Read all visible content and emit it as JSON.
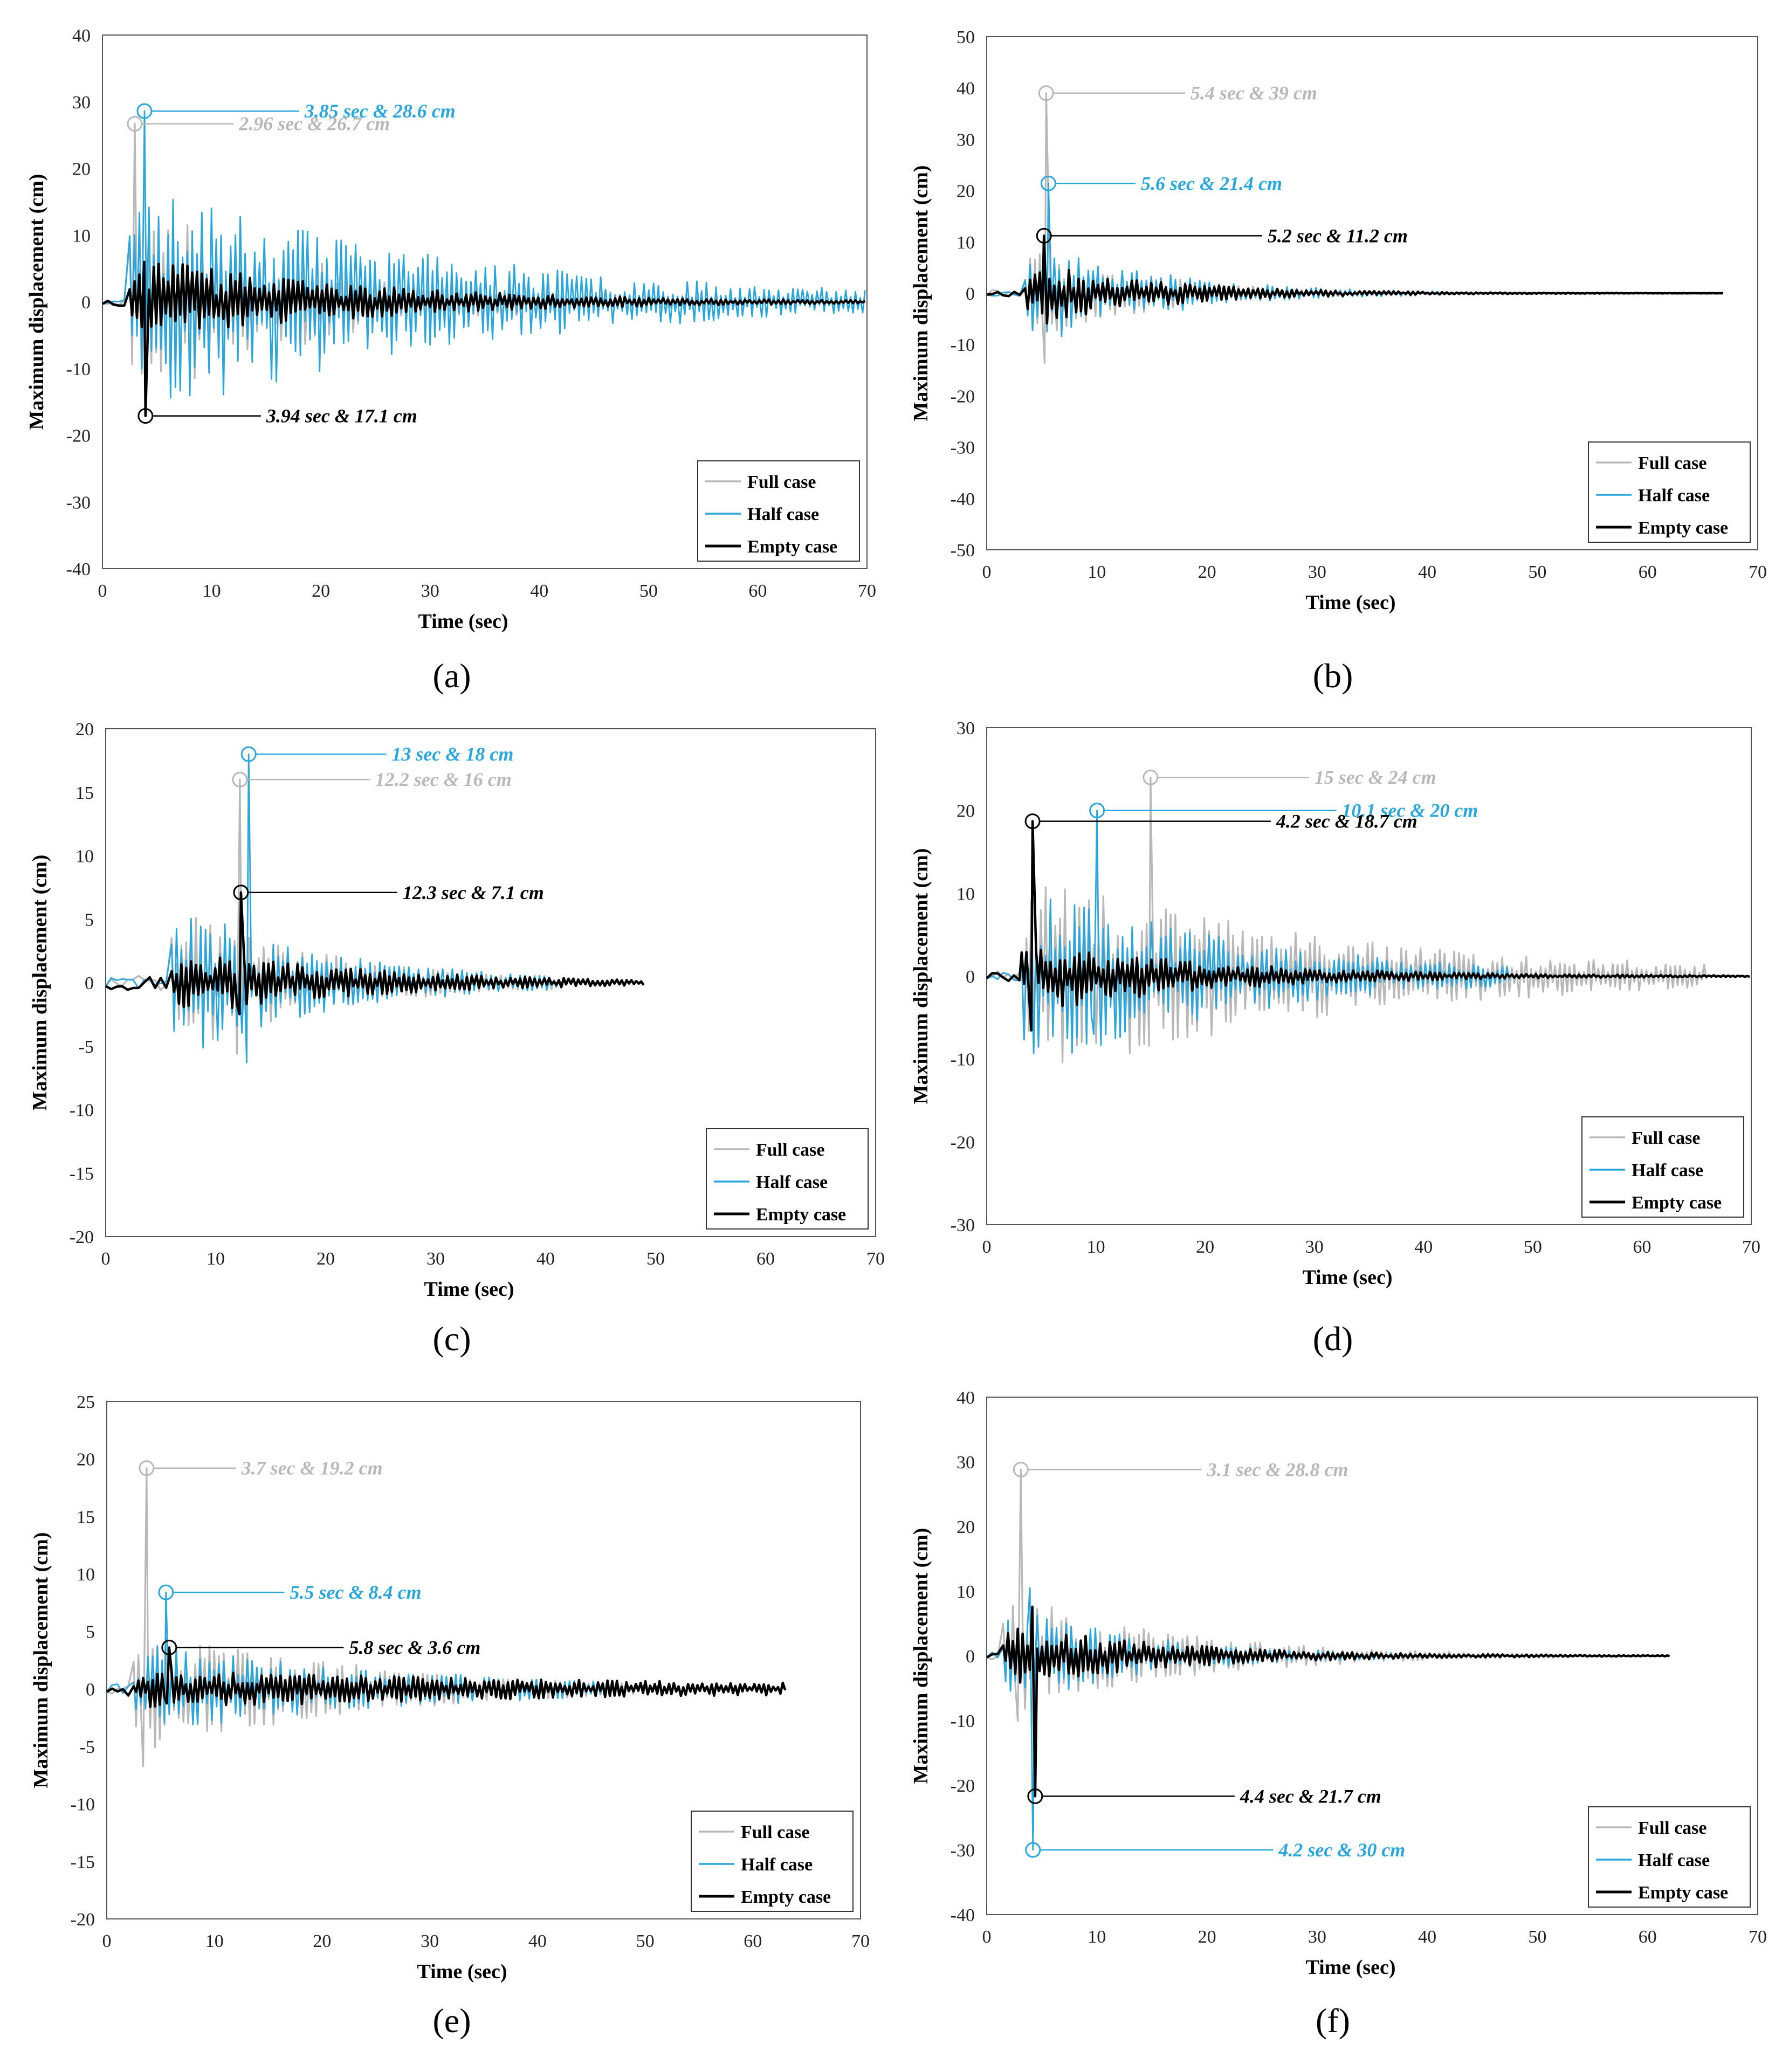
{
  "colors": {
    "full": "#b8b8b8",
    "half": "#2aa6dc",
    "empty": "#000000"
  },
  "chart_data": [
    {
      "panel": "(a)",
      "type": "line",
      "xlabel": "Time (sec)",
      "ylabel": "Maximum displacement (cm)",
      "xlim": [
        0,
        70
      ],
      "ylim": [
        -40,
        40
      ],
      "xticks": [
        0,
        10,
        20,
        30,
        40,
        50,
        60,
        70
      ],
      "yticks": [
        -40,
        -30,
        -20,
        -10,
        0,
        10,
        20,
        30,
        40
      ],
      "legend": [
        "Full case",
        "Half case",
        "Empty case"
      ],
      "legend_loc": "bottom-right",
      "series": [
        {
          "name": "Full case",
          "key": "full",
          "end": 60,
          "amp": 14,
          "decay": 0.06,
          "seed": 11
        },
        {
          "name": "Half case",
          "key": "half",
          "end": 70,
          "amp": 16,
          "decay": 0.035,
          "seed": 23
        },
        {
          "name": "Empty case",
          "key": "empty",
          "end": 70,
          "amp": 6,
          "decay": 0.05,
          "seed": 37
        }
      ],
      "annotations": [
        {
          "series": "half",
          "t": 3.85,
          "v": 28.6,
          "text": "3.85 sec & 28.6 cm",
          "tx": 18.5,
          "ty": 29.8
        },
        {
          "series": "full",
          "t": 2.96,
          "v": 26.7,
          "text": "2.96 sec & 26.7 cm",
          "tx": 12.5,
          "ty": 25.7
        },
        {
          "series": "empty",
          "t": 3.94,
          "v": -17.1,
          "text": "3.94 sec & 17.1 cm",
          "tx": 15,
          "ty": -16.8
        }
      ]
    },
    {
      "panel": "(b)",
      "type": "line",
      "xlabel": "Time (sec)",
      "ylabel": "Maximum displacement (cm)",
      "xlim": [
        0,
        70
      ],
      "ylim": [
        -50,
        50
      ],
      "xticks": [
        0,
        10,
        20,
        30,
        40,
        50,
        60,
        70
      ],
      "yticks": [
        -50,
        -40,
        -30,
        -20,
        -10,
        0,
        10,
        20,
        30,
        40,
        50
      ],
      "legend": [
        "Full case",
        "Half case",
        "Empty case"
      ],
      "legend_loc": "bottom-right",
      "series": [
        {
          "name": "Full case",
          "key": "full",
          "end": 56,
          "amp": 9,
          "decay": 0.1,
          "seed": 41
        },
        {
          "name": "Half case",
          "key": "half",
          "end": 63,
          "amp": 10,
          "decay": 0.09,
          "seed": 53
        },
        {
          "name": "Empty case",
          "key": "empty",
          "end": 67,
          "amp": 6,
          "decay": 0.09,
          "seed": 67
        }
      ],
      "annotations": [
        {
          "series": "full",
          "t": 5.4,
          "v": 39,
          "text": "5.4 sec & 39 cm",
          "tx": 18.5,
          "ty": 39.5
        },
        {
          "series": "half",
          "t": 5.6,
          "v": 21.4,
          "text": "5.6 sec & 21.4 cm",
          "tx": 14,
          "ty": 21.5
        },
        {
          "series": "empty",
          "t": 5.2,
          "v": 11.2,
          "text": "5.2 sec & 11.2 cm",
          "tx": 25.5,
          "ty": 11.5
        }
      ]
    },
    {
      "panel": "(c)",
      "type": "line",
      "xlabel": "Time (sec)",
      "ylabel": "Maximum displacement (cm)",
      "xlim": [
        0,
        70
      ],
      "ylim": [
        -20,
        20
      ],
      "xticks": [
        0,
        10,
        20,
        30,
        40,
        50,
        60,
        70
      ],
      "yticks": [
        -20,
        -15,
        -10,
        -5,
        0,
        5,
        10,
        15,
        20
      ],
      "legend": [
        "Full case",
        "Half case",
        "Empty case"
      ],
      "legend_loc": "bottom-right",
      "series": [
        {
          "name": "Full case",
          "key": "full",
          "end": 41,
          "amp": 5,
          "decay": 0.07,
          "seed": 71
        },
        {
          "name": "Half case",
          "key": "half",
          "end": 41,
          "amp": 5.5,
          "decay": 0.07,
          "seed": 83
        },
        {
          "name": "Empty case",
          "key": "empty",
          "end": 49,
          "amp": 2.5,
          "decay": 0.06,
          "seed": 97
        }
      ],
      "annotations": [
        {
          "series": "half",
          "t": 13,
          "v": 18,
          "text": "13 sec & 18 cm",
          "tx": 26,
          "ty": 18
        },
        {
          "series": "full",
          "t": 12.2,
          "v": 16,
          "text": "12.2 sec & 16 cm",
          "tx": 24.5,
          "ty": 15.5
        },
        {
          "series": "empty",
          "t": 12.3,
          "v": 7.1,
          "text": "12.3 sec & 7.1 cm",
          "tx": 27,
          "ty": 7.1
        }
      ]
    },
    {
      "panel": "(d)",
      "type": "line",
      "xlabel": "Time (sec)",
      "ylabel": "Maximum displacement (cm)",
      "xlim": [
        0,
        70
      ],
      "ylim": [
        -30,
        30
      ],
      "xticks": [
        0,
        10,
        20,
        30,
        40,
        50,
        60,
        70
      ],
      "yticks": [
        -30,
        -20,
        -10,
        0,
        10,
        20,
        30
      ],
      "legend": [
        "Full case",
        "Half case",
        "Empty case"
      ],
      "legend_loc": "bottom-right",
      "series": [
        {
          "name": "Full case",
          "key": "full",
          "end": 66,
          "amp": 11,
          "decay": 0.035,
          "seed": 101
        },
        {
          "name": "Half case",
          "key": "half",
          "end": 48,
          "amp": 10,
          "decay": 0.05,
          "seed": 113
        },
        {
          "name": "Empty case",
          "key": "empty",
          "end": 70,
          "amp": 4,
          "decay": 0.06,
          "seed": 127
        }
      ],
      "annotations": [
        {
          "series": "full",
          "t": 15,
          "v": 24,
          "text": "15 sec & 24 cm",
          "tx": 30,
          "ty": 23.5
        },
        {
          "series": "half",
          "t": 10.1,
          "v": 20,
          "text": "10.1 sec & 20 cm",
          "tx": 32.5,
          "ty": 20.5
        },
        {
          "series": "empty",
          "t": 4.2,
          "v": 18.7,
          "text": "4.2 sec & 18.7 cm",
          "tx": 26.5,
          "ty": 18.2
        }
      ]
    },
    {
      "panel": "(e)",
      "type": "line",
      "xlabel": "Time (sec)",
      "ylabel": "Maximum displacement (cm)",
      "xlim": [
        0,
        70
      ],
      "ylim": [
        -20,
        25
      ],
      "xticks": [
        0,
        10,
        20,
        30,
        40,
        50,
        60,
        70
      ],
      "yticks": [
        -20,
        -15,
        -10,
        -5,
        0,
        5,
        10,
        15,
        20,
        25
      ],
      "legend": [
        "Full case",
        "Half case",
        "Empty case"
      ],
      "legend_loc": "bottom-right",
      "series": [
        {
          "name": "Full case",
          "key": "full",
          "end": 49,
          "amp": 5,
          "decay": 0.05,
          "seed": 131
        },
        {
          "name": "Half case",
          "key": "half",
          "end": 47,
          "amp": 3.5,
          "decay": 0.04,
          "seed": 149
        },
        {
          "name": "Empty case",
          "key": "empty",
          "end": 63,
          "amp": 1.5,
          "decay": 0.02,
          "seed": 157
        }
      ],
      "annotations": [
        {
          "series": "full",
          "t": 3.7,
          "v": 19.2,
          "text": "3.7 sec & 19.2 cm",
          "tx": 12.5,
          "ty": 18.9
        },
        {
          "series": "half",
          "t": 5.5,
          "v": 8.4,
          "text": "5.5 sec & 8.4 cm",
          "tx": 17,
          "ty": 8.8
        },
        {
          "series": "empty",
          "t": 5.8,
          "v": 3.6,
          "text": "5.8 sec & 3.6 cm",
          "tx": 22.5,
          "ty": 4
        }
      ]
    },
    {
      "panel": "(f)",
      "type": "line",
      "xlabel": "Time (sec)",
      "ylabel": "Maximum displacement (cm)",
      "xlim": [
        0,
        70
      ],
      "ylim": [
        -40,
        40
      ],
      "xticks": [
        0,
        10,
        20,
        30,
        40,
        50,
        60,
        70
      ],
      "yticks": [
        -40,
        -30,
        -20,
        -10,
        0,
        10,
        20,
        30,
        40
      ],
      "legend": [
        "Full case",
        "Half case",
        "Empty case"
      ],
      "legend_loc": "bottom-right",
      "series": [
        {
          "name": "Full case",
          "key": "full",
          "end": 53,
          "amp": 9,
          "decay": 0.07,
          "seed": 163
        },
        {
          "name": "Half case",
          "key": "half",
          "end": 53,
          "amp": 7,
          "decay": 0.08,
          "seed": 173
        },
        {
          "name": "Empty case",
          "key": "empty",
          "end": 62,
          "amp": 4.5,
          "decay": 0.07,
          "seed": 181
        }
      ],
      "annotations": [
        {
          "series": "full",
          "t": 3.1,
          "v": 28.8,
          "text": "3.1 sec & 28.8 cm",
          "tx": 20,
          "ty": 28.5
        },
        {
          "series": "empty",
          "t": 4.4,
          "v": -21.7,
          "text": "4.4 sec & 21.7 cm",
          "tx": 23,
          "ty": -21.5
        },
        {
          "series": "half",
          "t": 4.2,
          "v": -30,
          "text": "4.2 sec & 30 cm",
          "tx": 26.5,
          "ty": -30.5
        }
      ]
    }
  ]
}
